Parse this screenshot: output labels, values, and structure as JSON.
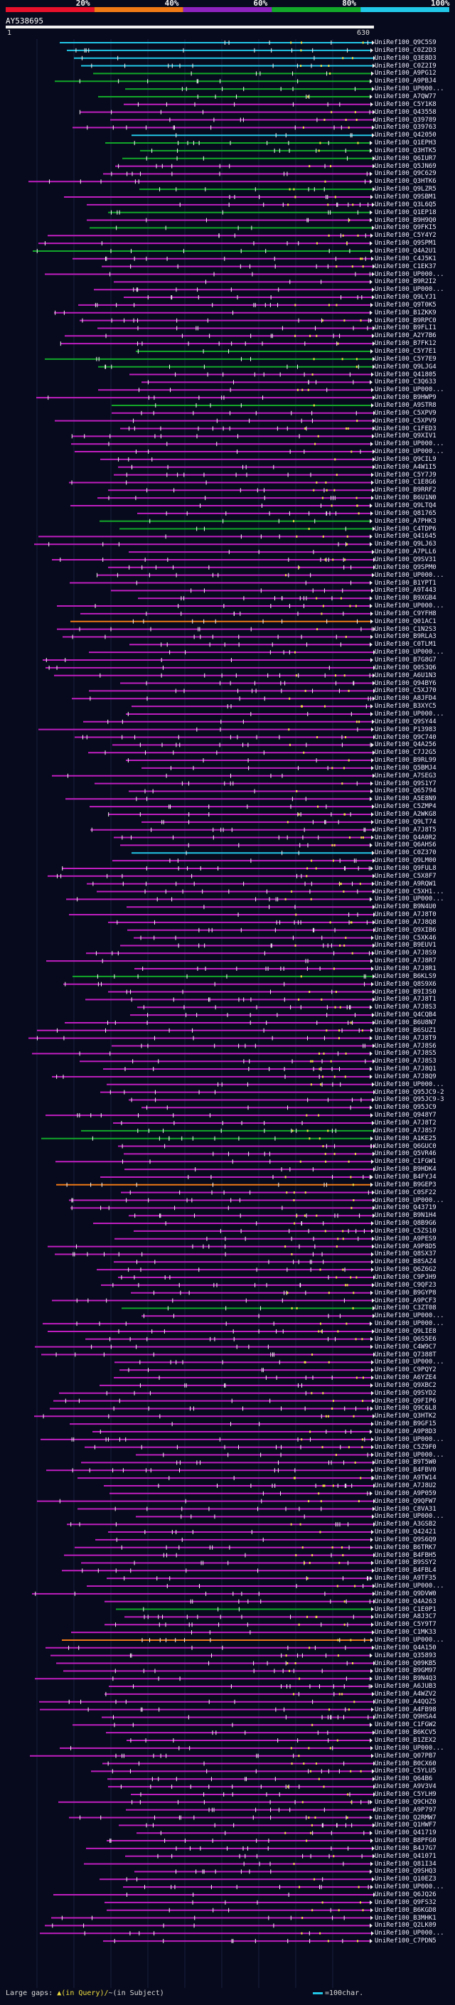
{
  "legend": {
    "colors": [
      "#e8102a",
      "#f07a16",
      "#8e23c0",
      "#12a82a",
      "#22c8e8"
    ],
    "labels": [
      "20%",
      "40%",
      "60%",
      "80%",
      "100%"
    ]
  },
  "query": {
    "id": "AY538695",
    "start": "1",
    "end": "630"
  },
  "hits": [
    {
      "label": "UniRef100_Q9C5S9",
      "color": "#22c8e8"
    },
    {
      "label": "UniRef100_C0Z2D3",
      "color": "#22c8e8"
    },
    {
      "label": "UniRef100_Q3E8D3",
      "color": "#22c8e8"
    },
    {
      "label": "UniRef100_C0Z2I9",
      "color": "#22c8e8"
    },
    {
      "label": "UniRef100_A9PG12",
      "color": "#12a82a"
    },
    {
      "label": "UniRef100_A9PBJ4",
      "color": "#12a82a"
    },
    {
      "label": "UniRef100_UP000...",
      "color": "#12a82a"
    },
    {
      "label": "UniRef100_A7QW77",
      "color": "#12a82a"
    },
    {
      "label": "UniRef100_C5Y1K8",
      "color": "#c01ec0"
    },
    {
      "label": "UniRef100_Q43558",
      "color": "#c01ec0"
    },
    {
      "label": "UniRef100_Q39789",
      "color": "#c01ec0"
    },
    {
      "label": "UniRef100_Q39763",
      "color": "#c01ec0"
    },
    {
      "label": "UniRef100_Q42050",
      "color": "#22c8e8"
    },
    {
      "label": "UniRef100_Q1EPH3",
      "color": "#12a82a"
    },
    {
      "label": "UniRef100_Q3HTK5",
      "color": "#12a82a"
    },
    {
      "label": "UniRef100_Q6IUR7",
      "color": "#12a82a"
    },
    {
      "label": "UniRef100_Q5JN69",
      "color": "#c01ec0"
    },
    {
      "label": "UniRef100_Q9C629",
      "color": "#c01ec0"
    },
    {
      "label": "UniRef100_Q3HTK6",
      "color": "#c01ec0"
    },
    {
      "label": "UniRef100_Q9LZR5",
      "color": "#12a82a"
    },
    {
      "label": "UniRef100_Q9SBM1",
      "color": "#c01ec0"
    },
    {
      "label": "UniRef100_Q3L6Q5",
      "color": "#c01ec0"
    },
    {
      "label": "UniRef100_Q1EP18",
      "color": "#12a82a"
    },
    {
      "label": "UniRef100_B9H9Q0",
      "color": "#c01ec0"
    },
    {
      "label": "UniRef100_Q9FKI5",
      "color": "#12a82a"
    },
    {
      "label": "UniRef100_C5Y4Y2",
      "color": "#c01ec0"
    },
    {
      "label": "UniRef100_Q9SPM1",
      "color": "#c01ec0"
    },
    {
      "label": "UniRef100_Q4A2U1",
      "color": "#12a82a"
    },
    {
      "label": "UniRef100_C4J5K1",
      "color": "#c01ec0"
    },
    {
      "label": "UniRef100_C1EK37",
      "color": "#c01ec0"
    },
    {
      "label": "UniRef100_UP000...",
      "color": "#c01ec0"
    },
    {
      "label": "UniRef100_B9R2I2",
      "color": "#c01ec0"
    },
    {
      "label": "UniRef100_UP000...",
      "color": "#c01ec0"
    },
    {
      "label": "UniRef100_Q9LYJ1",
      "color": "#c01ec0"
    },
    {
      "label": "UniRef100_Q9T0K5",
      "color": "#c01ec0"
    },
    {
      "label": "UniRef100_B1ZKK9",
      "color": "#c01ec0"
    },
    {
      "label": "UniRef100_B9RPC0",
      "color": "#c01ec0"
    },
    {
      "label": "UniRef100_B9FLI1",
      "color": "#c01ec0"
    },
    {
      "label": "UniRef100_A2Y7B6",
      "color": "#c01ec0"
    },
    {
      "label": "UniRef100_B7FK12",
      "color": "#c01ec0"
    },
    {
      "label": "UniRef100_C5Y7E1",
      "color": "#12a82a"
    },
    {
      "label": "UniRef100_C5Y7E9",
      "color": "#12a82a"
    },
    {
      "label": "UniRef100_Q9LJG4",
      "color": "#12a82a"
    },
    {
      "label": "UniRef100_Q41805",
      "color": "#c01ec0"
    },
    {
      "label": "UniRef100_C3Q633",
      "color": "#c01ec0"
    },
    {
      "label": "UniRef100_UP000...",
      "color": "#c01ec0"
    },
    {
      "label": "UniRef100_B9HWP9",
      "color": "#c01ec0"
    },
    {
      "label": "UniRef100_A9STR8",
      "color": "#12a82a"
    },
    {
      "label": "UniRef100_C5XPV9",
      "color": "#c01ec0"
    },
    {
      "label": "UniRef100_C5XPV9",
      "color": "#c01ec0"
    },
    {
      "label": "UniRef100_C1FED3",
      "color": "#c01ec0"
    },
    {
      "label": "UniRef100_Q9XIV1",
      "color": "#c01ec0"
    },
    {
      "label": "UniRef100_UP000...",
      "color": "#c01ec0"
    },
    {
      "label": "UniRef100_UP000...",
      "color": "#c01ec0"
    },
    {
      "label": "UniRef100_Q9CIL9",
      "color": "#c01ec0"
    },
    {
      "label": "UniRef100_A4W1I5",
      "color": "#c01ec0"
    },
    {
      "label": "UniRef100_C5Y7J9",
      "color": "#c01ec0"
    },
    {
      "label": "UniRef100_C1E8G6",
      "color": "#c01ec0"
    },
    {
      "label": "UniRef100_B9RRF2",
      "color": "#c01ec0"
    },
    {
      "label": "UniRef100_B6U1N0",
      "color": "#c01ec0"
    },
    {
      "label": "UniRef100_Q9LTQ4",
      "color": "#c01ec0"
    },
    {
      "label": "UniRef100_Q81765",
      "color": "#c01ec0"
    },
    {
      "label": "UniRef100_A7PHK3",
      "color": "#12a82a"
    },
    {
      "label": "UniRef100_C4TDP6",
      "color": "#12a82a"
    },
    {
      "label": "UniRef100_Q41645",
      "color": "#c01ec0"
    },
    {
      "label": "UniRef100_Q9LJ63",
      "color": "#c01ec0"
    },
    {
      "label": "UniRef100_A7PLL6",
      "color": "#c01ec0"
    },
    {
      "label": "UniRef100_Q9SV31",
      "color": "#c01ec0"
    },
    {
      "label": "UniRef100_Q9SPM0",
      "color": "#c01ec0"
    },
    {
      "label": "UniRef100_UP000...",
      "color": "#c01ec0"
    },
    {
      "label": "UniRef100_B1YPT1",
      "color": "#c01ec0"
    },
    {
      "label": "UniRef100_A9T443",
      "color": "#c01ec0"
    },
    {
      "label": "UniRef100_B9XGB4",
      "color": "#c01ec0"
    },
    {
      "label": "UniRef100_UP000...",
      "color": "#c01ec0"
    },
    {
      "label": "UniRef100_C9YFH8",
      "color": "#c01ec0"
    },
    {
      "label": "UniRef100_Q01AC1",
      "color": "#f07a16"
    },
    {
      "label": "UniRef100_C1N2S3",
      "color": "#c01ec0"
    },
    {
      "label": "UniRef100_B9RLA3",
      "color": "#c01ec0"
    },
    {
      "label": "UniRef100_C0TLM1",
      "color": "#c01ec0"
    },
    {
      "label": "UniRef100_UP000...",
      "color": "#c01ec0"
    },
    {
      "label": "UniRef100_B7G8G7",
      "color": "#c01ec0"
    },
    {
      "label": "UniRef100_Q0S3Q6",
      "color": "#c01ec0"
    },
    {
      "label": "UniRef100_A6U1N3",
      "color": "#c01ec0"
    },
    {
      "label": "UniRef100_Q94BY6",
      "color": "#c01ec0"
    },
    {
      "label": "UniRef100_C5XJ70",
      "color": "#c01ec0"
    },
    {
      "label": "UniRef100_A8JFD4",
      "color": "#c01ec0"
    },
    {
      "label": "UniRef100_B3XYC5",
      "color": "#c01ec0"
    },
    {
      "label": "UniRef100_UP000...",
      "color": "#c01ec0"
    },
    {
      "label": "UniRef100_Q9SY44",
      "color": "#c01ec0"
    },
    {
      "label": "UniRef100_P13983",
      "color": "#c01ec0"
    },
    {
      "label": "UniRef100_Q9C740",
      "color": "#c01ec0"
    },
    {
      "label": "UniRef100_Q4A256",
      "color": "#c01ec0"
    },
    {
      "label": "UniRef100_C7J2G5",
      "color": "#c01ec0"
    },
    {
      "label": "UniRef100_B9RL99",
      "color": "#c01ec0"
    },
    {
      "label": "UniRef100_Q5BMJ4",
      "color": "#c01ec0"
    },
    {
      "label": "UniRef100_A7SEG3",
      "color": "#c01ec0"
    },
    {
      "label": "UniRef100_Q9S1Y7",
      "color": "#c01ec0"
    },
    {
      "label": "UniRef100_Q65794",
      "color": "#c01ec0"
    },
    {
      "label": "UniRef100_A5E8N9",
      "color": "#c01ec0"
    },
    {
      "label": "UniRef100_C5ZMP4",
      "color": "#c01ec0"
    },
    {
      "label": "UniRef100_A2WKG8",
      "color": "#c01ec0"
    },
    {
      "label": "UniRef100_Q9LT74",
      "color": "#c01ec0"
    },
    {
      "label": "UniRef100_A7J8T5",
      "color": "#c01ec0"
    },
    {
      "label": "UniRef100_Q4A0R2",
      "color": "#c01ec0"
    },
    {
      "label": "UniRef100_Q6AHS6",
      "color": "#c01ec0"
    },
    {
      "label": "UniRef100_C0Z370",
      "color": "#22c8e8"
    },
    {
      "label": "UniRef100_Q9LM00",
      "color": "#c01ec0"
    },
    {
      "label": "UniRef100_Q9FUL8",
      "color": "#c01ec0"
    },
    {
      "label": "UniRef100_C5X8F7",
      "color": "#c01ec0"
    },
    {
      "label": "UniRef100_A9RQW1",
      "color": "#c01ec0"
    },
    {
      "label": "UniRef100_C5XH1...",
      "color": "#c01ec0"
    },
    {
      "label": "UniRef100_UP000...",
      "color": "#c01ec0"
    },
    {
      "label": "UniRef100_B9N4U0",
      "color": "#c01ec0"
    },
    {
      "label": "UniRef100_A7J8T0",
      "color": "#c01ec0"
    },
    {
      "label": "UniRef100_A7J8Q8",
      "color": "#c01ec0"
    },
    {
      "label": "UniRef100_Q9XIB6",
      "color": "#c01ec0"
    },
    {
      "label": "UniRef100_C5XK46",
      "color": "#c01ec0"
    },
    {
      "label": "UniRef100_B9EUV1",
      "color": "#c01ec0"
    },
    {
      "label": "UniRef100_A7J8S9",
      "color": "#c01ec0"
    },
    {
      "label": "UniRef100_A7J8R7",
      "color": "#c01ec0"
    },
    {
      "label": "UniRef100_A7J8R1",
      "color": "#c01ec0"
    },
    {
      "label": "UniRef100_B6KLS9",
      "color": "#12a82a"
    },
    {
      "label": "UniRef100_Q8S9X6",
      "color": "#c01ec0"
    },
    {
      "label": "UniRef100_B9I3S0",
      "color": "#c01ec0"
    },
    {
      "label": "UniRef100_A7J8T1",
      "color": "#c01ec0"
    },
    {
      "label": "UniRef100_A7J8S3",
      "color": "#c01ec0"
    },
    {
      "label": "UniRef100_Q4CQB4",
      "color": "#c01ec0"
    },
    {
      "label": "UniRef100_B6U8N7",
      "color": "#c01ec0"
    },
    {
      "label": "UniRef100_B6SUZ1",
      "color": "#c01ec0"
    },
    {
      "label": "UniRef100_A7J8T9",
      "color": "#c01ec0"
    },
    {
      "label": "UniRef100_A7J8S6",
      "color": "#c01ec0"
    },
    {
      "label": "UniRef100_A7J8S5",
      "color": "#c01ec0"
    },
    {
      "label": "UniRef100_A7J8S3",
      "color": "#c01ec0"
    },
    {
      "label": "UniRef100_A7J8Q1",
      "color": "#c01ec0"
    },
    {
      "label": "UniRef100_A7J8Q9",
      "color": "#c01ec0"
    },
    {
      "label": "UniRef100_UP000...",
      "color": "#c01ec0"
    },
    {
      "label": "UniRef100_Q95JC9-2",
      "color": "#c01ec0"
    },
    {
      "label": "UniRef100_Q95JC9-3",
      "color": "#c01ec0"
    },
    {
      "label": "UniRef100_Q95JC9",
      "color": "#c01ec0"
    },
    {
      "label": "UniRef100_Q948Y7",
      "color": "#c01ec0"
    },
    {
      "label": "UniRef100_A7J8T2",
      "color": "#c01ec0"
    },
    {
      "label": "UniRef100_A7J8S7",
      "color": "#12a82a"
    },
    {
      "label": "UniRef100_A1KE25",
      "color": "#12a82a"
    },
    {
      "label": "UniRef100_Q6GUC0",
      "color": "#c01ec0"
    },
    {
      "label": "UniRef100_Q5VR46",
      "color": "#c01ec0"
    },
    {
      "label": "UniRef100_C1FGW1",
      "color": "#c01ec0"
    },
    {
      "label": "UniRef100_B9HDK4",
      "color": "#c01ec0"
    },
    {
      "label": "UniRef100_B4FYJ4",
      "color": "#c01ec0"
    },
    {
      "label": "UniRef100_B9GEP3",
      "color": "#f07a16"
    },
    {
      "label": "UniRef100_C0SF22",
      "color": "#c01ec0"
    },
    {
      "label": "UniRef100_UP000...",
      "color": "#c01ec0"
    },
    {
      "label": "UniRef100_Q43719",
      "color": "#c01ec0"
    },
    {
      "label": "UniRef100_B9N1H4",
      "color": "#c01ec0"
    },
    {
      "label": "UniRef100_Q8B9G6",
      "color": "#c01ec0"
    },
    {
      "label": "UniRef100_C5ZS10",
      "color": "#c01ec0"
    },
    {
      "label": "UniRef100_A9PES9",
      "color": "#c01ec0"
    },
    {
      "label": "UniRef100_A9P8D5",
      "color": "#c01ec0"
    },
    {
      "label": "UniRef100_Q8SX37",
      "color": "#c01ec0"
    },
    {
      "label": "UniRef100_B8SAZ4",
      "color": "#c01ec0"
    },
    {
      "label": "UniRef100_Q6Z6G2",
      "color": "#c01ec0"
    },
    {
      "label": "UniRef100_C9PJH9",
      "color": "#c01ec0"
    },
    {
      "label": "UniRef100_C9QF23",
      "color": "#c01ec0"
    },
    {
      "label": "UniRef100_B9GYP8",
      "color": "#c01ec0"
    },
    {
      "label": "UniRef100_A9PCF3",
      "color": "#c01ec0"
    },
    {
      "label": "UniRef100_C3ZT08",
      "color": "#12a82a"
    },
    {
      "label": "UniRef100_UP000...",
      "color": "#c01ec0"
    },
    {
      "label": "UniRef100_UP000...",
      "color": "#c01ec0"
    },
    {
      "label": "UniRef100_Q9LIE8",
      "color": "#c01ec0"
    },
    {
      "label": "UniRef100_Q6S5E6",
      "color": "#c01ec0"
    },
    {
      "label": "UniRef100_C4W9C7",
      "color": "#c01ec0"
    },
    {
      "label": "UniRef100_Q7388T",
      "color": "#c01ec0"
    },
    {
      "label": "UniRef100_UP000...",
      "color": "#c01ec0"
    },
    {
      "label": "UniRef100_C9PQY2",
      "color": "#c01ec0"
    },
    {
      "label": "UniRef100_A6YZE4",
      "color": "#c01ec0"
    },
    {
      "label": "UniRef100_Q9XBC2",
      "color": "#c01ec0"
    },
    {
      "label": "UniRef100_Q9SYD2",
      "color": "#c01ec0"
    },
    {
      "label": "UniRef100_Q9FIP6",
      "color": "#c01ec0"
    },
    {
      "label": "UniRef100_Q9C6L8",
      "color": "#c01ec0"
    },
    {
      "label": "UniRef100_Q3HTK2",
      "color": "#c01ec0"
    },
    {
      "label": "UniRef100_B9GF15",
      "color": "#c01ec0"
    },
    {
      "label": "UniRef100_A9P8D3",
      "color": "#c01ec0"
    },
    {
      "label": "UniRef100_UP000...",
      "color": "#c01ec0"
    },
    {
      "label": "UniRef100_C5Z9F0",
      "color": "#c01ec0"
    },
    {
      "label": "UniRef100_UP000...",
      "color": "#c01ec0"
    },
    {
      "label": "UniRef100_B9T5W0",
      "color": "#c01ec0"
    },
    {
      "label": "UniRef100_B4FBV0",
      "color": "#c01ec0"
    },
    {
      "label": "UniRef100_A9TW14",
      "color": "#c01ec0"
    },
    {
      "label": "UniRef100_A7J8U2",
      "color": "#c01ec0"
    },
    {
      "label": "UniRef100_A9P059",
      "color": "#c01ec0"
    },
    {
      "label": "UniRef100_Q9QFW7",
      "color": "#c01ec0"
    },
    {
      "label": "UniRef100_C8VA31",
      "color": "#c01ec0"
    },
    {
      "label": "UniRef100_UP000...",
      "color": "#c01ec0"
    },
    {
      "label": "UniRef100_A3GSB2",
      "color": "#c01ec0"
    },
    {
      "label": "UniRef100_Q42421",
      "color": "#c01ec0"
    },
    {
      "label": "UniRef100_Q9S6Q9",
      "color": "#c01ec0"
    },
    {
      "label": "UniRef100_B6TRK7",
      "color": "#c01ec0"
    },
    {
      "label": "UniRef100_B4FBH5",
      "color": "#c01ec0"
    },
    {
      "label": "UniRef100_B9SSY2",
      "color": "#c01ec0"
    },
    {
      "label": "UniRef100_B4FBL4",
      "color": "#c01ec0"
    },
    {
      "label": "UniRef100_A9TF35",
      "color": "#c01ec0"
    },
    {
      "label": "UniRef100_UP000...",
      "color": "#c01ec0"
    },
    {
      "label": "UniRef100_Q9DVW0",
      "color": "#c01ec0"
    },
    {
      "label": "UniRef100_Q4A263",
      "color": "#c01ec0"
    },
    {
      "label": "UniRef100_C1E0P1",
      "color": "#12a82a"
    },
    {
      "label": "UniRef100_A8J3C7",
      "color": "#c01ec0"
    },
    {
      "label": "UniRef100_C5Y9T7",
      "color": "#c01ec0"
    },
    {
      "label": "UniRef100_C1MK33",
      "color": "#c01ec0"
    },
    {
      "label": "UniRef100_UP000...",
      "color": "#f07a16"
    },
    {
      "label": "UniRef100_Q4A150",
      "color": "#c01ec0"
    },
    {
      "label": "UniRef100_Q35893",
      "color": "#c01ec0"
    },
    {
      "label": "UniRef100_Q09KB5",
      "color": "#c01ec0"
    },
    {
      "label": "UniRef100_B9GM97",
      "color": "#c01ec0"
    },
    {
      "label": "UniRef100_B9N4Q3",
      "color": "#c01ec0"
    },
    {
      "label": "UniRef100_A6JUB3",
      "color": "#c01ec0"
    },
    {
      "label": "UniRef100_A4WZV2",
      "color": "#c01ec0"
    },
    {
      "label": "UniRef100_A4QQZ5",
      "color": "#c01ec0"
    },
    {
      "label": "UniRef100_A4FB98",
      "color": "#c01ec0"
    },
    {
      "label": "UniRef100_Q9HSA4",
      "color": "#c01ec0"
    },
    {
      "label": "UniRef100_C1FGW2",
      "color": "#c01ec0"
    },
    {
      "label": "UniRef100_B6KCV5",
      "color": "#c01ec0"
    },
    {
      "label": "UniRef100_B1ZEX2",
      "color": "#c01ec0"
    },
    {
      "label": "UniRef100_UP000...",
      "color": "#c01ec0"
    },
    {
      "label": "UniRef100_Q07PB7",
      "color": "#c01ec0"
    },
    {
      "label": "UniRef100_B0CX60",
      "color": "#c01ec0"
    },
    {
      "label": "UniRef100_C5YLU5",
      "color": "#c01ec0"
    },
    {
      "label": "UniRef100_Q64B6",
      "color": "#c01ec0"
    },
    {
      "label": "UniRef100_A9V3V4",
      "color": "#c01ec0"
    },
    {
      "label": "UniRef100_C5YLH9",
      "color": "#c01ec0"
    },
    {
      "label": "UniRef100_Q9CHZ0",
      "color": "#c01ec0"
    },
    {
      "label": "UniRef100_A9P797",
      "color": "#c01ec0"
    },
    {
      "label": "UniRef100_Q2RMW7",
      "color": "#c01ec0"
    },
    {
      "label": "UniRef100_Q1HWF7",
      "color": "#c01ec0"
    },
    {
      "label": "UniRef100_Q41719",
      "color": "#c01ec0"
    },
    {
      "label": "UniRef100_B8PFG0",
      "color": "#c01ec0"
    },
    {
      "label": "UniRef100_B4J7G7",
      "color": "#c01ec0"
    },
    {
      "label": "UniRef100_Q41071",
      "color": "#c01ec0"
    },
    {
      "label": "UniRef100_Q81I34",
      "color": "#c01ec0"
    },
    {
      "label": "UniRef100_Q9SHQ3",
      "color": "#c01ec0"
    },
    {
      "label": "UniRef100_Q10EZ3",
      "color": "#c01ec0"
    },
    {
      "label": "UniRef100_UP000...",
      "color": "#c01ec0"
    },
    {
      "label": "UniRef100_Q6JQ26",
      "color": "#c01ec0"
    },
    {
      "label": "UniRef100_Q9FS32",
      "color": "#c01ec0"
    },
    {
      "label": "UniRef100_B6KGD8",
      "color": "#c01ec0"
    },
    {
      "label": "UniRef100_B3MHK1",
      "color": "#c01ec0"
    },
    {
      "label": "UniRef100_Q2LK09",
      "color": "#c01ec0"
    },
    {
      "label": "UniRef100_UP000...",
      "color": "#c01ec0"
    },
    {
      "label": "UniRef100_C7PDN5",
      "color": "#c01ec0"
    }
  ],
  "footer": {
    "gaps_label": "Large gaps:",
    "query_marker": "▲(in Query)/",
    "subject_marker": "~(in Subject)",
    "scale_label": "=100char."
  }
}
